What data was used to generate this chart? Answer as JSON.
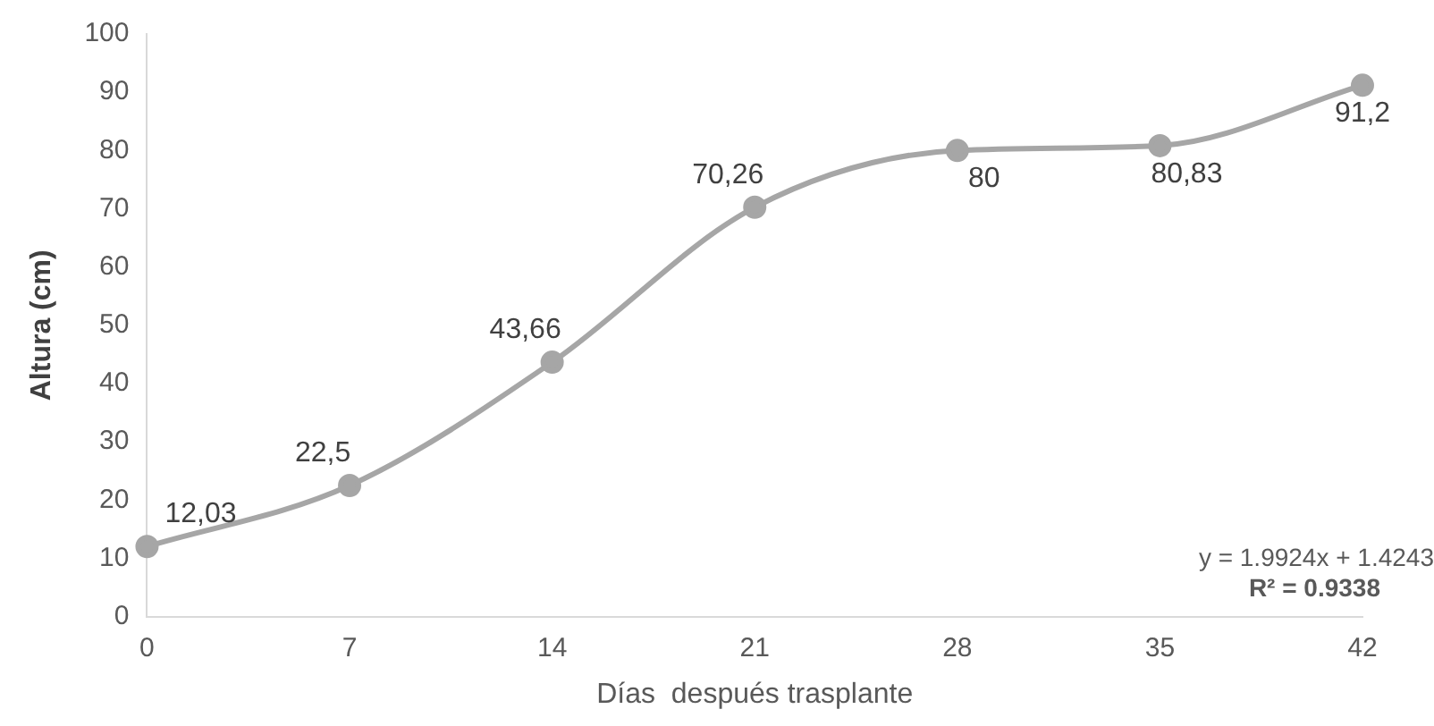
{
  "chart_data": {
    "type": "line",
    "xlabel": "Días  después trasplante",
    "ylabel": "Altura (cm)",
    "categories": [
      "0",
      "7",
      "14",
      "21",
      "28",
      "35",
      "42"
    ],
    "series": [
      {
        "color": "#a6a6a6",
        "values": [
          12.03,
          22.5,
          43.66,
          70.26,
          80,
          80.83,
          91.2
        ],
        "value_labels": [
          "12,03",
          "22,5",
          "43,66",
          "70,26",
          "80",
          "80,83",
          "91,2"
        ]
      }
    ],
    "ylim": [
      0,
      100
    ],
    "yticks": [
      0,
      10,
      20,
      30,
      40,
      50,
      60,
      70,
      80,
      90,
      100
    ],
    "grid": false,
    "legend": false,
    "marker": "circle",
    "line_style": "solid",
    "annotations": [
      "y = 1.9924x + 1.4243",
      "R² = 0.9338"
    ]
  }
}
